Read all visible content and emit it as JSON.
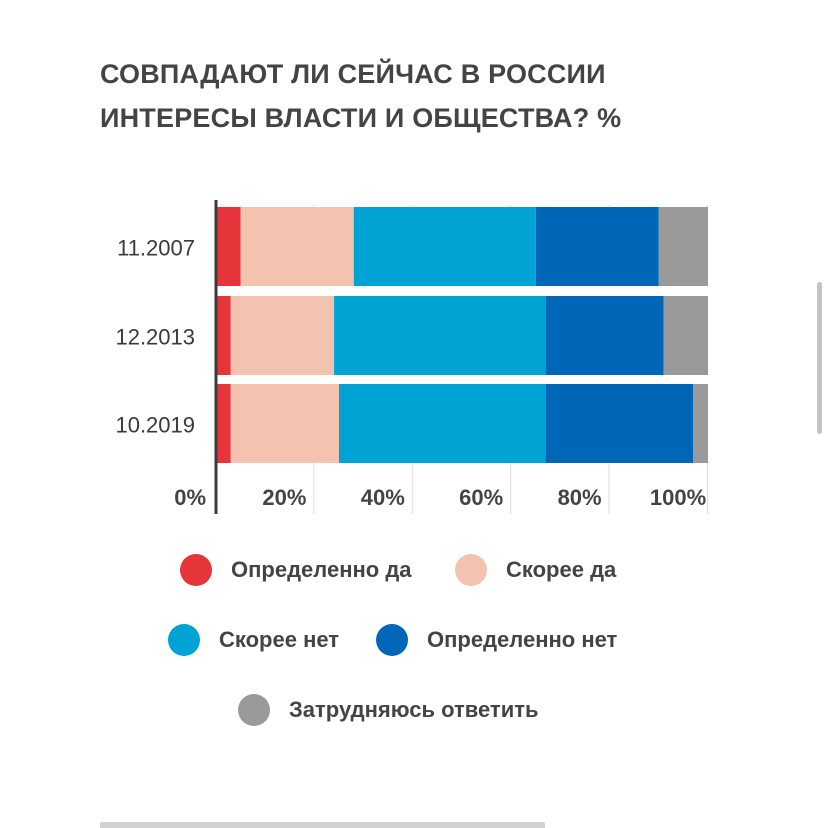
{
  "chart_data": {
    "type": "bar",
    "orientation": "horizontal",
    "stacked": true,
    "title_lines": [
      "СОВПАДАЮТ ЛИ СЕЙЧАС В РОССИИ",
      "ИНТЕРЕСЫ ВЛАСТИ И ОБЩЕСТВА? %"
    ],
    "categories": [
      "11.2007",
      "12.2013",
      "10.2019"
    ],
    "series": [
      {
        "name": "Определенно да",
        "color": "#e5353b",
        "values": [
          5,
          3,
          3
        ]
      },
      {
        "name": "Скорее да",
        "color": "#f3c3b0",
        "values": [
          23,
          21,
          22
        ]
      },
      {
        "name": "Скорее нет",
        "color": "#00a3d3",
        "values": [
          37,
          43,
          42
        ]
      },
      {
        "name": "Определенно нет",
        "color": "#0067b8",
        "values": [
          25,
          24,
          30
        ]
      },
      {
        "name": "Затрудняюсь ответить",
        "color": "#9a9a9a",
        "values": [
          10,
          9,
          3
        ]
      }
    ],
    "xlim": [
      0,
      100
    ],
    "x_ticks": [
      "0%",
      "20%",
      "40%",
      "60%",
      "80%",
      "100%"
    ],
    "xlabel": "",
    "ylabel": "",
    "grid": true,
    "legend_position": "bottom"
  },
  "legend_layout": [
    [
      0,
      1
    ],
    [
      2,
      3
    ],
    [
      4
    ]
  ]
}
